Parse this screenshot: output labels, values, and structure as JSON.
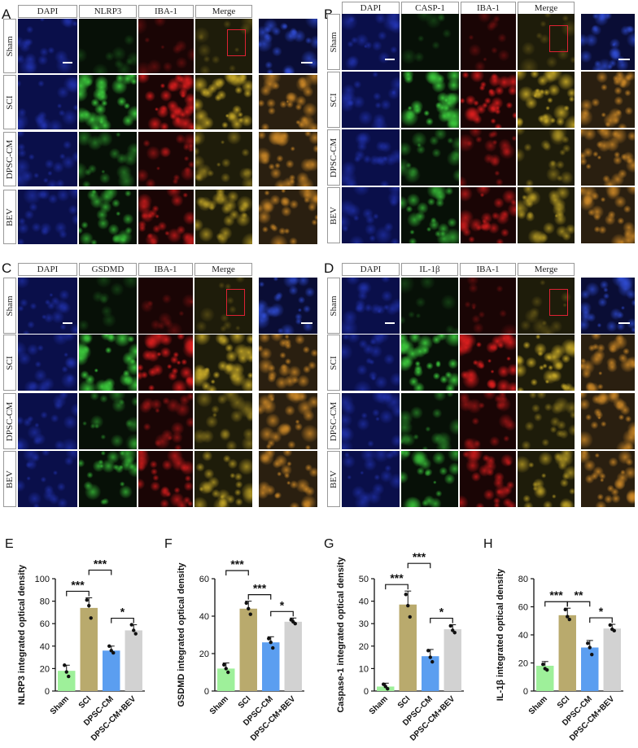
{
  "panels": {
    "A": {
      "letter": "A",
      "headers": [
        "DAPI",
        "NLRP3",
        "IBA-1",
        "Merge"
      ],
      "rows": [
        "Sham",
        "SCI",
        "DPSC-CM",
        "BEV"
      ],
      "stain": "NLRP3"
    },
    "B": {
      "letter": "B",
      "headers": [
        "DAPI",
        "CASP-1",
        "IBA-1",
        "Merge"
      ],
      "rows": [
        "Sham",
        "SCI",
        "DPSC-CM",
        "BEV"
      ],
      "stain": "CASP-1"
    },
    "C": {
      "letter": "C",
      "headers": [
        "DAPI",
        "GSDMD",
        "IBA-1",
        "Merge"
      ],
      "rows": [
        "Sham",
        "SCI",
        "DPSC-CM",
        "BEV"
      ],
      "stain": "GSDMD"
    },
    "D": {
      "letter": "D",
      "headers": [
        "DAPI",
        "IL-1β",
        "IBA-1",
        "Merge"
      ],
      "rows": [
        "Sham",
        "SCI",
        "DPSC-CM",
        "BEV"
      ],
      "stain": "IL-1β"
    }
  },
  "colors": {
    "dapi": "#0a0f4a",
    "green": "#2fb52f",
    "red": "#c41717",
    "merge": "#6d6a22",
    "bar_sham": "#9ef09a",
    "bar_sci": "#b9aa6d",
    "bar_cm": "#5b9ef0",
    "bar_bev": "#d2d2d2"
  },
  "chart_data": [
    {
      "letter": "E",
      "type": "bar",
      "ylabel": "NLRP3  integrated optical density",
      "ylim": [
        0,
        100
      ],
      "yticks": [
        "0",
        "20",
        "40",
        "60",
        "80",
        "100"
      ],
      "categories": [
        "Sham",
        "SCI",
        "DPSC-CM",
        "DPSC-CM+BEV"
      ],
      "values": [
        18,
        74,
        36,
        54
      ],
      "errors": [
        5,
        9,
        4,
        5
      ],
      "points": [
        [
          23,
          17,
          13
        ],
        [
          81,
          76,
          65
        ],
        [
          40,
          36,
          34
        ],
        [
          59,
          54,
          51
        ]
      ],
      "significance": [
        {
          "from": 0,
          "to": 1,
          "label": "***",
          "level": 0
        },
        {
          "from": 1,
          "to": 2,
          "label": "***",
          "level": 1
        },
        {
          "from": 2,
          "to": 3,
          "label": "*",
          "level": 0
        }
      ]
    },
    {
      "letter": "F",
      "type": "bar",
      "ylabel": "GSDMD  integrated optical density",
      "ylim": [
        0,
        60
      ],
      "yticks": [
        "0",
        "20",
        "40",
        "60"
      ],
      "categories": [
        "Sham",
        "SCI",
        "DPSC-CM",
        "DPSC-CM+BEV"
      ],
      "values": [
        12,
        44,
        26,
        37
      ],
      "errors": [
        3,
        4,
        3,
        2
      ],
      "points": [
        [
          14,
          12,
          10
        ],
        [
          47,
          44,
          41
        ],
        [
          28,
          26,
          23
        ],
        [
          38,
          37,
          36
        ]
      ],
      "significance": [
        {
          "from": 0,
          "to": 1,
          "label": "***",
          "level": 1
        },
        {
          "from": 1,
          "to": 2,
          "label": "***",
          "level": 0
        },
        {
          "from": 2,
          "to": 3,
          "label": "*",
          "level": 0
        }
      ]
    },
    {
      "letter": "G",
      "type": "bar",
      "ylabel": "Caspase-1  integrated optical density",
      "ylim": [
        0,
        50
      ],
      "yticks": [
        "0",
        "10",
        "20",
        "30",
        "40",
        "50"
      ],
      "categories": [
        "Sham",
        "SCI",
        "DPSC-CM",
        "DPSC-CM+BEV"
      ],
      "values": [
        2,
        38.5,
        15.5,
        27.5
      ],
      "errors": [
        1.5,
        6,
        3,
        2
      ],
      "points": [
        [
          3,
          2,
          1
        ],
        [
          43,
          38,
          33
        ],
        [
          18,
          15,
          13
        ],
        [
          29,
          27,
          26
        ]
      ],
      "significance": [
        {
          "from": 0,
          "to": 1,
          "label": "***",
          "level": 0
        },
        {
          "from": 1,
          "to": 2,
          "label": "***",
          "level": 1
        },
        {
          "from": 2,
          "to": 3,
          "label": "*",
          "level": 0
        }
      ]
    },
    {
      "letter": "H",
      "type": "bar",
      "ylabel": "IL-1β  integrated optical density",
      "ylim": [
        0,
        80
      ],
      "yticks": [
        "0",
        "20",
        "40",
        "60",
        "80"
      ],
      "categories": [
        "Sham",
        "SCI",
        "DPSC-CM",
        "DPSC-CM+BEV"
      ],
      "values": [
        18,
        54,
        31,
        44.5
      ],
      "errors": [
        3,
        5,
        5,
        3
      ],
      "points": [
        [
          19,
          16,
          15
        ],
        [
          58,
          53,
          51
        ],
        [
          34,
          31,
          26
        ],
        [
          47,
          44,
          43
        ]
      ],
      "significance": [
        {
          "from": 0,
          "to": 1,
          "label": "***",
          "level": 0
        },
        {
          "from": 1,
          "to": 2,
          "label": "**",
          "level": 0
        },
        {
          "from": 2,
          "to": 3,
          "label": "*",
          "level": 0
        }
      ]
    }
  ]
}
